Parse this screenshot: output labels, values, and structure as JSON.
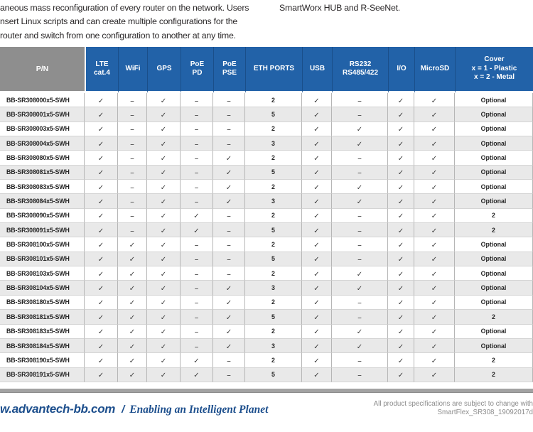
{
  "intro": {
    "left_text": "aneous mass reconfiguration of every router on the network. Users\nnsert Linux scripts and can create multiple configurations for the\nrouter and switch from one configuration to another at any time.",
    "right_text": "SmartWorx HUB and R-SeeNet."
  },
  "symbols": {
    "check": "✓",
    "none": "–"
  },
  "colors": {
    "header_blue": "#2262a8",
    "header_gray": "#8e8e8e",
    "row_alt_gray": "#e9e9e9",
    "footer_blue": "#1d4f8d",
    "divider_gray": "#a2a2a2"
  },
  "table": {
    "columns": [
      {
        "key": "pn",
        "label": "P/N"
      },
      {
        "key": "lte-cat4",
        "label": "LTE\ncat.4"
      },
      {
        "key": "wifi",
        "label": "WiFi"
      },
      {
        "key": "gps",
        "label": "GPS"
      },
      {
        "key": "poe-pd",
        "label": "PoE\nPD"
      },
      {
        "key": "poe-pse",
        "label": "PoE\nPSE"
      },
      {
        "key": "eth-ports",
        "label": "ETH PORTS"
      },
      {
        "key": "usb",
        "label": "USB"
      },
      {
        "key": "rs232-rs485-422",
        "label": "RS232\nRS485/422"
      },
      {
        "key": "io",
        "label": "I/O"
      },
      {
        "key": "microsd",
        "label": "MicroSD"
      },
      {
        "key": "cover",
        "label": "Cover\nx = 1 - Plastic\nx = 2 - Metal"
      }
    ],
    "rows": [
      {
        "pn": "BB-SR308000x5-SWH",
        "values": [
          "c",
          "d",
          "c",
          "d",
          "d",
          "2",
          "c",
          "d",
          "c",
          "c",
          "Optional"
        ]
      },
      {
        "pn": "BB-SR308001x5-SWH",
        "values": [
          "c",
          "d",
          "c",
          "d",
          "d",
          "5",
          "c",
          "d",
          "c",
          "c",
          "Optional"
        ]
      },
      {
        "pn": "BB-SR308003x5-SWH",
        "values": [
          "c",
          "d",
          "c",
          "d",
          "d",
          "2",
          "c",
          "c",
          "c",
          "c",
          "Optional"
        ]
      },
      {
        "pn": "BB-SR308004x5-SWH",
        "values": [
          "c",
          "d",
          "c",
          "d",
          "d",
          "3",
          "c",
          "c",
          "c",
          "c",
          "Optional"
        ]
      },
      {
        "pn": "BB-SR308080x5-SWH",
        "values": [
          "c",
          "d",
          "c",
          "d",
          "c",
          "2",
          "c",
          "d",
          "c",
          "c",
          "Optional"
        ]
      },
      {
        "pn": "BB-SR308081x5-SWH",
        "values": [
          "c",
          "d",
          "c",
          "d",
          "c",
          "5",
          "c",
          "d",
          "c",
          "c",
          "Optional"
        ]
      },
      {
        "pn": "BB-SR308083x5-SWH",
        "values": [
          "c",
          "d",
          "c",
          "d",
          "c",
          "2",
          "c",
          "c",
          "c",
          "c",
          "Optional"
        ]
      },
      {
        "pn": "BB-SR308084x5-SWH",
        "values": [
          "c",
          "d",
          "c",
          "d",
          "c",
          "3",
          "c",
          "c",
          "c",
          "c",
          "Optional"
        ]
      },
      {
        "pn": "BB-SR308090x5-SWH",
        "values": [
          "c",
          "d",
          "c",
          "c",
          "d",
          "2",
          "c",
          "d",
          "c",
          "c",
          "2"
        ]
      },
      {
        "pn": "BB-SR308091x5-SWH",
        "values": [
          "c",
          "d",
          "c",
          "c",
          "d",
          "5",
          "c",
          "d",
          "c",
          "c",
          "2"
        ]
      },
      {
        "pn": "BB-SR308100x5-SWH",
        "values": [
          "c",
          "c",
          "c",
          "d",
          "d",
          "2",
          "c",
          "d",
          "c",
          "c",
          "Optional"
        ]
      },
      {
        "pn": "BB-SR308101x5-SWH",
        "values": [
          "c",
          "c",
          "c",
          "d",
          "d",
          "5",
          "c",
          "d",
          "c",
          "c",
          "Optional"
        ]
      },
      {
        "pn": "BB-SR308103x5-SWH",
        "values": [
          "c",
          "c",
          "c",
          "d",
          "d",
          "2",
          "c",
          "c",
          "c",
          "c",
          "Optional"
        ]
      },
      {
        "pn": "BB-SR308104x5-SWH",
        "values": [
          "c",
          "c",
          "c",
          "d",
          "c",
          "3",
          "c",
          "c",
          "c",
          "c",
          "Optional"
        ]
      },
      {
        "pn": "BB-SR308180x5-SWH",
        "values": [
          "c",
          "c",
          "c",
          "d",
          "c",
          "2",
          "c",
          "d",
          "c",
          "c",
          "Optional"
        ]
      },
      {
        "pn": "BB-SR308181x5-SWH",
        "values": [
          "c",
          "c",
          "c",
          "d",
          "c",
          "5",
          "c",
          "d",
          "c",
          "c",
          "2"
        ]
      },
      {
        "pn": "BB-SR308183x5-SWH",
        "values": [
          "c",
          "c",
          "c",
          "d",
          "c",
          "2",
          "c",
          "c",
          "c",
          "c",
          "Optional"
        ]
      },
      {
        "pn": "BB-SR308184x5-SWH",
        "values": [
          "c",
          "c",
          "c",
          "d",
          "c",
          "3",
          "c",
          "c",
          "c",
          "c",
          "Optional"
        ]
      },
      {
        "pn": "BB-SR308190x5-SWH",
        "values": [
          "c",
          "c",
          "c",
          "c",
          "d",
          "2",
          "c",
          "d",
          "c",
          "c",
          "2"
        ]
      },
      {
        "pn": "BB-SR308191x5-SWH",
        "values": [
          "c",
          "c",
          "c",
          "c",
          "d",
          "5",
          "c",
          "d",
          "c",
          "c",
          "2"
        ]
      }
    ]
  },
  "footer": {
    "site": "w.advantech-bb.com",
    "separator": "/",
    "tagline": "Enabling an Intelligent Planet",
    "note_line1": "All product specifications are subject to change with",
    "note_line2": "SmartFlex_SR308_19092017d"
  }
}
